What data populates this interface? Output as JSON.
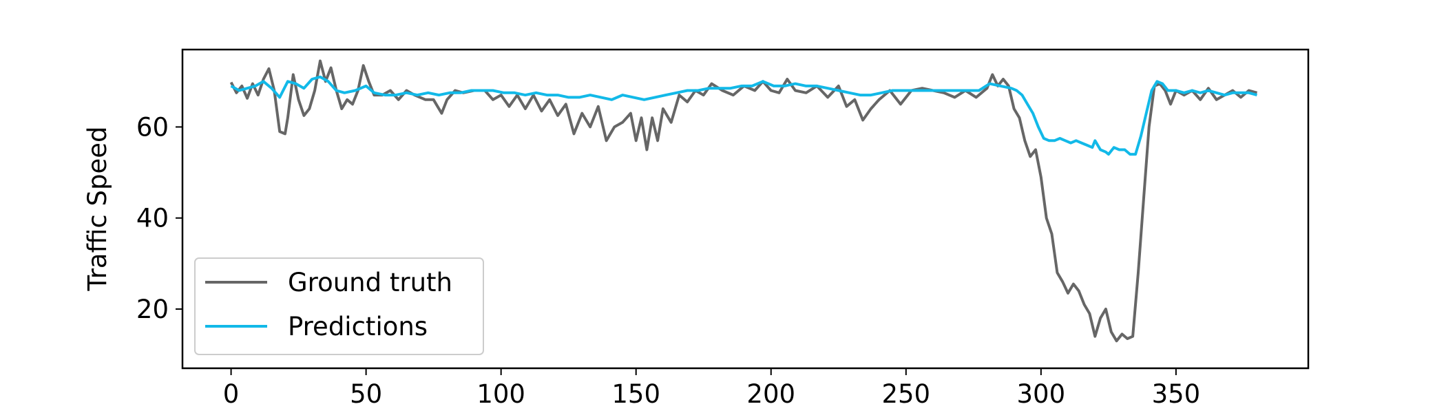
{
  "chart_data": {
    "type": "line",
    "title": "",
    "xlabel": "",
    "ylabel": "Traffic Speed",
    "xlim": [
      -18,
      399
    ],
    "ylim": [
      7,
      77
    ],
    "x_ticks": [
      0,
      50,
      100,
      150,
      200,
      250,
      300,
      350
    ],
    "y_ticks": [
      20,
      40,
      60
    ],
    "grid": false,
    "legend_position": "lower-left",
    "series": [
      {
        "name": "Ground truth",
        "color": "#666666",
        "points": [
          [
            0,
            69.8
          ],
          [
            2,
            67.5
          ],
          [
            4,
            69
          ],
          [
            6,
            66.3
          ],
          [
            8,
            69.5
          ],
          [
            10,
            67
          ],
          [
            12,
            70.5
          ],
          [
            14,
            72.8
          ],
          [
            16,
            68
          ],
          [
            18,
            59
          ],
          [
            20,
            58.5
          ],
          [
            21,
            62
          ],
          [
            23,
            71.5
          ],
          [
            25,
            66
          ],
          [
            27,
            62.5
          ],
          [
            29,
            64
          ],
          [
            31,
            68
          ],
          [
            33,
            74.5
          ],
          [
            35,
            70
          ],
          [
            37,
            73
          ],
          [
            39,
            68
          ],
          [
            41,
            64
          ],
          [
            43,
            66
          ],
          [
            45,
            65
          ],
          [
            47,
            68
          ],
          [
            49,
            73.5
          ],
          [
            51,
            70
          ],
          [
            53,
            67
          ],
          [
            56,
            67
          ],
          [
            59,
            68
          ],
          [
            62,
            66
          ],
          [
            65,
            68
          ],
          [
            68,
            67
          ],
          [
            72,
            66
          ],
          [
            75,
            66
          ],
          [
            78,
            63
          ],
          [
            80,
            66
          ],
          [
            83,
            68
          ],
          [
            86,
            67.5
          ],
          [
            90,
            68
          ],
          [
            94,
            68
          ],
          [
            97,
            66
          ],
          [
            100,
            67
          ],
          [
            103,
            64.5
          ],
          [
            106,
            67
          ],
          [
            109,
            64
          ],
          [
            112,
            67
          ],
          [
            115,
            63.5
          ],
          [
            118,
            66
          ],
          [
            121,
            62.5
          ],
          [
            124,
            65
          ],
          [
            127,
            58.5
          ],
          [
            130,
            63
          ],
          [
            133,
            60
          ],
          [
            136,
            64.5
          ],
          [
            139,
            57
          ],
          [
            142,
            60
          ],
          [
            145,
            61
          ],
          [
            148,
            63
          ],
          [
            150,
            57
          ],
          [
            152,
            62
          ],
          [
            154,
            55
          ],
          [
            156,
            62
          ],
          [
            158,
            57
          ],
          [
            160,
            64
          ],
          [
            163,
            61
          ],
          [
            166,
            67
          ],
          [
            169,
            65.5
          ],
          [
            172,
            68
          ],
          [
            175,
            67
          ],
          [
            178,
            69.5
          ],
          [
            182,
            68
          ],
          [
            186,
            67
          ],
          [
            190,
            69
          ],
          [
            194,
            68
          ],
          [
            197,
            70
          ],
          [
            200,
            68
          ],
          [
            203,
            67.5
          ],
          [
            206,
            70.5
          ],
          [
            209,
            68
          ],
          [
            213,
            67.5
          ],
          [
            217,
            69
          ],
          [
            221,
            66.5
          ],
          [
            225,
            69
          ],
          [
            228,
            64.5
          ],
          [
            231,
            66
          ],
          [
            234,
            61.5
          ],
          [
            237,
            64
          ],
          [
            240,
            66
          ],
          [
            244,
            68
          ],
          [
            248,
            65
          ],
          [
            252,
            68
          ],
          [
            256,
            68.5
          ],
          [
            260,
            68
          ],
          [
            264,
            67.5
          ],
          [
            268,
            66.5
          ],
          [
            272,
            68
          ],
          [
            276,
            66.5
          ],
          [
            280,
            68.5
          ],
          [
            282,
            71.5
          ],
          [
            284,
            69
          ],
          [
            286,
            70.5
          ],
          [
            288,
            69
          ],
          [
            290,
            64
          ],
          [
            292,
            62
          ],
          [
            294,
            57
          ],
          [
            296,
            53.5
          ],
          [
            298,
            55
          ],
          [
            300,
            49
          ],
          [
            302,
            40
          ],
          [
            304,
            36.5
          ],
          [
            306,
            28
          ],
          [
            308,
            26
          ],
          [
            310,
            23.5
          ],
          [
            312,
            25.5
          ],
          [
            314,
            24
          ],
          [
            316,
            21
          ],
          [
            318,
            19
          ],
          [
            320,
            14
          ],
          [
            322,
            18
          ],
          [
            324,
            20
          ],
          [
            326,
            15
          ],
          [
            328,
            13
          ],
          [
            330,
            14.5
          ],
          [
            332,
            13.5
          ],
          [
            334,
            14
          ],
          [
            336,
            28
          ],
          [
            338,
            44
          ],
          [
            340,
            60
          ],
          [
            342,
            69
          ],
          [
            344,
            69.5
          ],
          [
            346,
            68
          ],
          [
            348,
            65
          ],
          [
            350,
            68
          ],
          [
            353,
            67
          ],
          [
            356,
            68
          ],
          [
            359,
            66
          ],
          [
            362,
            68.5
          ],
          [
            365,
            66
          ],
          [
            368,
            67
          ],
          [
            371,
            68
          ],
          [
            374,
            66.5
          ],
          [
            377,
            68
          ],
          [
            380,
            67.5
          ]
        ]
      },
      {
        "name": "Predictions",
        "color": "#12b9e8",
        "points": [
          [
            0,
            69
          ],
          [
            3,
            68
          ],
          [
            6,
            68.5
          ],
          [
            9,
            69
          ],
          [
            12,
            70
          ],
          [
            15,
            68.5
          ],
          [
            18,
            66.5
          ],
          [
            21,
            70
          ],
          [
            24,
            69.5
          ],
          [
            27,
            68.5
          ],
          [
            30,
            70.5
          ],
          [
            33,
            71
          ],
          [
            36,
            70
          ],
          [
            39,
            68
          ],
          [
            42,
            67.5
          ],
          [
            46,
            68
          ],
          [
            50,
            69
          ],
          [
            53,
            67.5
          ],
          [
            57,
            67
          ],
          [
            61,
            67
          ],
          [
            65,
            67.5
          ],
          [
            69,
            67
          ],
          [
            73,
            67.5
          ],
          [
            77,
            67
          ],
          [
            81,
            67.5
          ],
          [
            85,
            67.5
          ],
          [
            89,
            68
          ],
          [
            93,
            68
          ],
          [
            97,
            68
          ],
          [
            101,
            67.5
          ],
          [
            105,
            67.5
          ],
          [
            109,
            67
          ],
          [
            113,
            67.5
          ],
          [
            117,
            67
          ],
          [
            121,
            67
          ],
          [
            125,
            66.5
          ],
          [
            129,
            66.5
          ],
          [
            133,
            67
          ],
          [
            137,
            66.5
          ],
          [
            141,
            66
          ],
          [
            145,
            67
          ],
          [
            149,
            66.5
          ],
          [
            153,
            66
          ],
          [
            157,
            66.5
          ],
          [
            161,
            67
          ],
          [
            165,
            67.5
          ],
          [
            169,
            68
          ],
          [
            173,
            68
          ],
          [
            177,
            68.5
          ],
          [
            181,
            68.5
          ],
          [
            185,
            68.5
          ],
          [
            189,
            69
          ],
          [
            193,
            69
          ],
          [
            197,
            70
          ],
          [
            201,
            69
          ],
          [
            205,
            69
          ],
          [
            209,
            69.5
          ],
          [
            213,
            69
          ],
          [
            217,
            69
          ],
          [
            221,
            68.5
          ],
          [
            225,
            68
          ],
          [
            229,
            67.5
          ],
          [
            233,
            67
          ],
          [
            237,
            67
          ],
          [
            241,
            67.5
          ],
          [
            245,
            68
          ],
          [
            249,
            68
          ],
          [
            253,
            68
          ],
          [
            257,
            68
          ],
          [
            261,
            68
          ],
          [
            265,
            68
          ],
          [
            269,
            68
          ],
          [
            273,
            68
          ],
          [
            277,
            68
          ],
          [
            281,
            69.5
          ],
          [
            285,
            69
          ],
          [
            289,
            68.5
          ],
          [
            291,
            68
          ],
          [
            293,
            67
          ],
          [
            295,
            65
          ],
          [
            297,
            63
          ],
          [
            299,
            60
          ],
          [
            301,
            57.5
          ],
          [
            303,
            57
          ],
          [
            305,
            57
          ],
          [
            307,
            57.5
          ],
          [
            309,
            57
          ],
          [
            311,
            56.5
          ],
          [
            313,
            57
          ],
          [
            315,
            56.5
          ],
          [
            317,
            56
          ],
          [
            319,
            55.5
          ],
          [
            320,
            57
          ],
          [
            322,
            55
          ],
          [
            324,
            54.5
          ],
          [
            325,
            54
          ],
          [
            327,
            55.5
          ],
          [
            329,
            55
          ],
          [
            331,
            55
          ],
          [
            333,
            54
          ],
          [
            335,
            54
          ],
          [
            337,
            58
          ],
          [
            339,
            63
          ],
          [
            341,
            68
          ],
          [
            343,
            70
          ],
          [
            345,
            69.5
          ],
          [
            347,
            68
          ],
          [
            350,
            68
          ],
          [
            353,
            67.5
          ],
          [
            356,
            68
          ],
          [
            359,
            67.5
          ],
          [
            362,
            68
          ],
          [
            365,
            67.5
          ],
          [
            368,
            67
          ],
          [
            371,
            67.5
          ],
          [
            374,
            67.5
          ],
          [
            377,
            67.5
          ],
          [
            380,
            67
          ]
        ]
      }
    ]
  }
}
